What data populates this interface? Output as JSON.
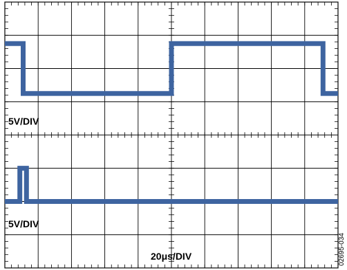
{
  "chart_data": {
    "type": "line",
    "title": "",
    "divisions": {
      "x": 10,
      "y": 8
    },
    "grid": true,
    "trace_color": "#3e64a0",
    "series": [
      {
        "channel_label": "5V/DIV",
        "x_div": [
          0,
          0.55,
          0.55,
          5.0,
          5.0,
          9.55,
          9.55,
          10.0
        ],
        "y_div": [
          2.75,
          2.75,
          1.25,
          1.25,
          2.75,
          2.75,
          1.25,
          1.25
        ]
      },
      {
        "channel_label": "5V/DIV",
        "x_div": [
          0,
          0.45,
          0.45,
          0.65,
          0.65,
          10.0
        ],
        "y_div": [
          -2.0,
          -2.0,
          -1.0,
          -1.0,
          -2.0,
          -2.0
        ]
      }
    ],
    "timebase_label": "20μs/DIV",
    "figure_id": "02695-034"
  }
}
